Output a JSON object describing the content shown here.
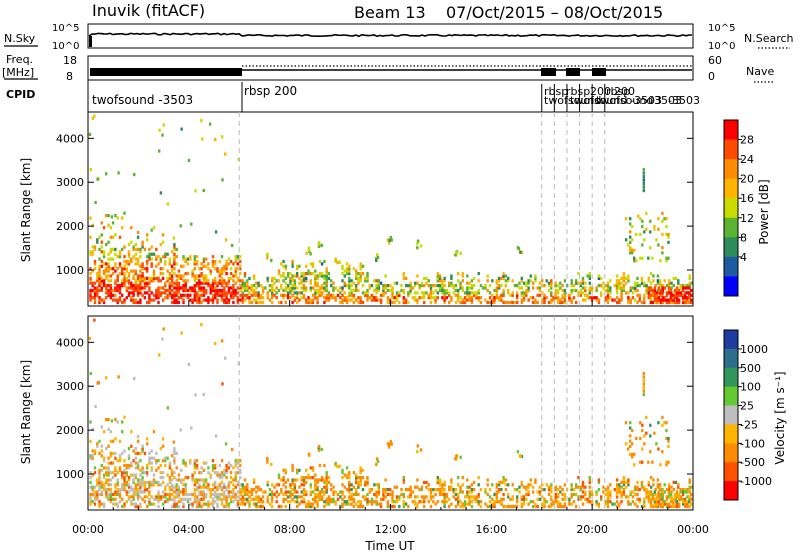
{
  "header": {
    "radar": "Inuvik  (fitACF)",
    "beam": "Beam 13",
    "dates": "07/Oct/2015 – 08/Oct/2015"
  },
  "top_panels": {
    "nsky_label": "N.Sky",
    "nsearch_label": "N.Search",
    "freq_label_1": "Freq.",
    "freq_label_2": "[MHz]",
    "nave_label": "Nave",
    "cpid_label": "CPID",
    "nsky_ticks": [
      "10^5",
      "10^0"
    ],
    "nsearch_ticks": [
      "10^5",
      "10^0"
    ],
    "freq_ticks": [
      "18",
      "8"
    ],
    "nave_ticks": [
      "60",
      "0"
    ]
  },
  "cpid": {
    "labels": [
      "twofsound -3503",
      "rbsp 200",
      "rbsp",
      "twofsound",
      "rbsp",
      "200",
      "twofsound",
      "rbsp",
      "200",
      "twofsound",
      "-3503",
      "-3503",
      "-3503"
    ]
  },
  "colorbars": {
    "power": {
      "label": "Power [dB]",
      "ticks": [
        "28",
        "24",
        "20",
        "16",
        "12",
        "8",
        "4"
      ],
      "colors": [
        "#ff0000",
        "#ff4a00",
        "#ff8c00",
        "#ffb400",
        "#c8dc00",
        "#5ab432",
        "#2d8c5a",
        "#1e5aa0",
        "#0000ff"
      ]
    },
    "velocity": {
      "label": "Velocity [m s⁻¹]",
      "ticks": [
        "1000",
        "500",
        "100",
        "25",
        "-25",
        "-100",
        "-500",
        "-1000"
      ],
      "colors": [
        "#1e3ca0",
        "#2d6e8c",
        "#32965a",
        "#64c832",
        "#bebebe",
        "#ffb400",
        "#ff8c00",
        "#ff5000",
        "#ff0000"
      ]
    }
  },
  "chart_data": [
    {
      "type": "heatmap",
      "title": "",
      "ylabel": "Slant Range [km]",
      "xlabel": "",
      "xlim": [
        "00:00",
        "24:00"
      ],
      "ylim": [
        180,
        4600
      ],
      "yticks": [
        "1000",
        "2000",
        "3000",
        "4000"
      ],
      "quantity": "Power [dB]",
      "cpid_change_times_ut": [
        "06:00",
        "18:00",
        "18:30",
        "19:00",
        "19:30",
        "20:00",
        "20:30"
      ]
    },
    {
      "type": "heatmap",
      "title": "",
      "ylabel": "Slant Range [km]",
      "xlabel": "Time UT",
      "xlim": [
        "00:00",
        "24:00"
      ],
      "ylim": [
        180,
        4600
      ],
      "yticks": [
        "1000",
        "2000",
        "3000",
        "4000"
      ],
      "xticks": [
        "00:00",
        "04:00",
        "08:00",
        "12:00",
        "16:00",
        "20:00",
        "00:00"
      ],
      "quantity": "Velocity [m s⁻¹]"
    }
  ]
}
